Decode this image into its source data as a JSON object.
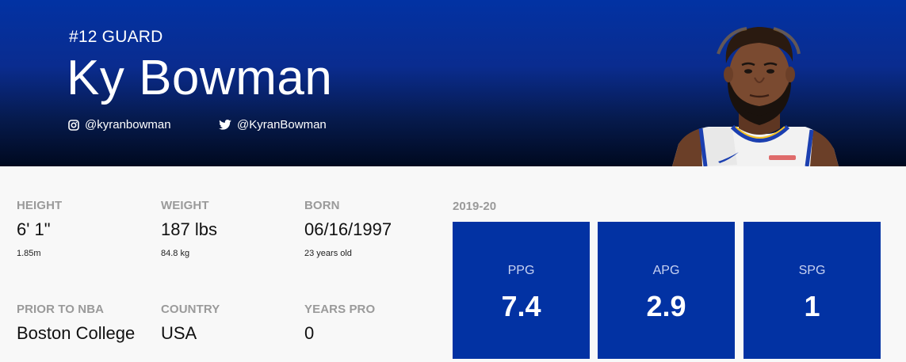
{
  "hero": {
    "jersey_position": "#12 GUARD",
    "name": "Ky Bowman",
    "instagram_handle": "@kyranbowman",
    "twitter_handle": "@KyranBowman",
    "colors": {
      "primary": "#0232a3",
      "dark": "#00091f"
    }
  },
  "bio": {
    "height": {
      "label": "HEIGHT",
      "value": "6' 1\"",
      "sub": "1.85m"
    },
    "weight": {
      "label": "WEIGHT",
      "value": "187 lbs",
      "sub": "84.8 kg"
    },
    "born": {
      "label": "BORN",
      "value": "06/16/1997",
      "sub": "23 years old"
    },
    "prior": {
      "label": "PRIOR TO NBA",
      "value": "Boston College"
    },
    "country": {
      "label": "COUNTRY",
      "value": "USA"
    },
    "years_pro": {
      "label": "YEARS PRO",
      "value": "0"
    }
  },
  "season": {
    "label": "2019-20",
    "stats": [
      {
        "label": "PPG",
        "value": "7.4"
      },
      {
        "label": "APG",
        "value": "2.9"
      },
      {
        "label": "SPG",
        "value": "1"
      }
    ]
  }
}
